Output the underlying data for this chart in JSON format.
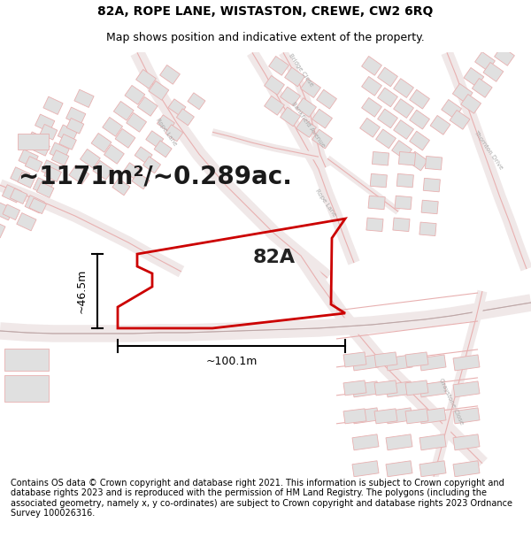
{
  "title": "82A, ROPE LANE, WISTASTON, CREWE, CW2 6RQ",
  "subtitle": "Map shows position and indicative extent of the property.",
  "area_text": "~1171m²/~0.289ac.",
  "label_82a": "82A",
  "dim_horizontal": "~100.1m",
  "dim_vertical": "~46.5m",
  "footer_text": "Contains OS data © Crown copyright and database right 2021. This information is subject to Crown copyright and database rights 2023 and is reproduced with the permission of HM Land Registry. The polygons (including the associated geometry, namely x, y co-ordinates) are subject to Crown copyright and database rights 2023 Ordnance Survey 100026316.",
  "bg_color": "#ffffff",
  "map_bg_color": "#ffffff",
  "plot_line_color": "#cc0000",
  "road_line_color": "#e8b0b0",
  "building_edge_color": "#e8b0b0",
  "building_face_color": "#e0e0e0",
  "road_center_color": "#b0b0b0",
  "title_fontsize": 10,
  "subtitle_fontsize": 9,
  "area_fontsize": 20,
  "label_fontsize": 16,
  "footer_fontsize": 7,
  "dim_fontsize": 9,
  "road_label_fontsize": 5,
  "road_label_color": "#aaaaaa"
}
